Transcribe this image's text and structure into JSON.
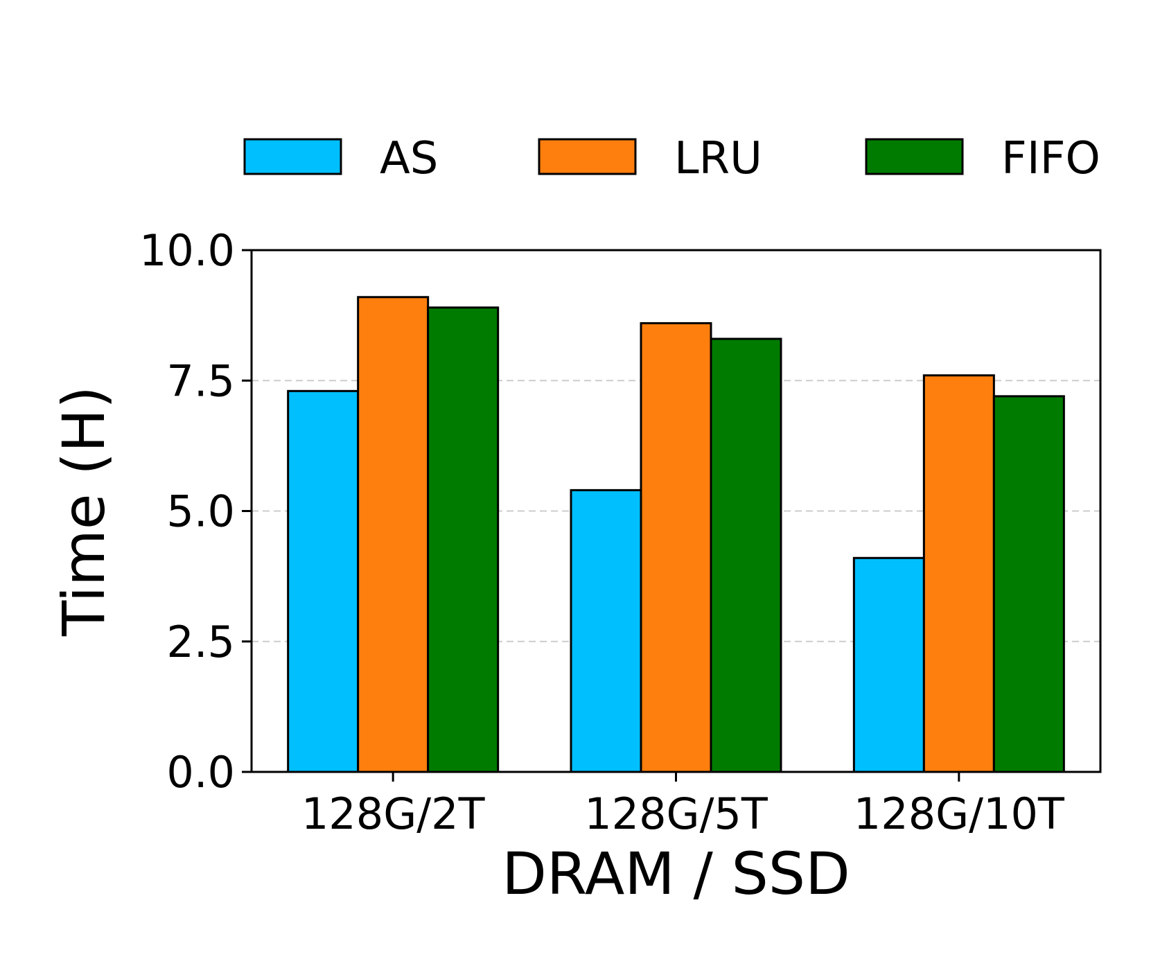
{
  "chart_data": {
    "type": "bar",
    "title": "",
    "xlabel": "DRAM / SSD",
    "ylabel": "Time (H)",
    "categories": [
      "128G/2T",
      "128G/5T",
      "128G/10T"
    ],
    "series": [
      {
        "name": "AS",
        "color": "#00bfff",
        "values": [
          7.3,
          5.4,
          4.1
        ]
      },
      {
        "name": "LRU",
        "color": "#ff7f0e",
        "values": [
          9.1,
          8.6,
          7.6
        ]
      },
      {
        "name": "FIFO",
        "color": "#007b00",
        "values": [
          8.9,
          8.3,
          7.2
        ]
      }
    ],
    "ylim": [
      0,
      10
    ],
    "yticks": [
      0.0,
      2.5,
      5.0,
      7.5,
      10.0
    ],
    "ytick_labels": [
      "0.0",
      "2.5",
      "5.0",
      "7.5",
      "10.0"
    ],
    "grid": "y-dashed",
    "legend_position": "top"
  }
}
